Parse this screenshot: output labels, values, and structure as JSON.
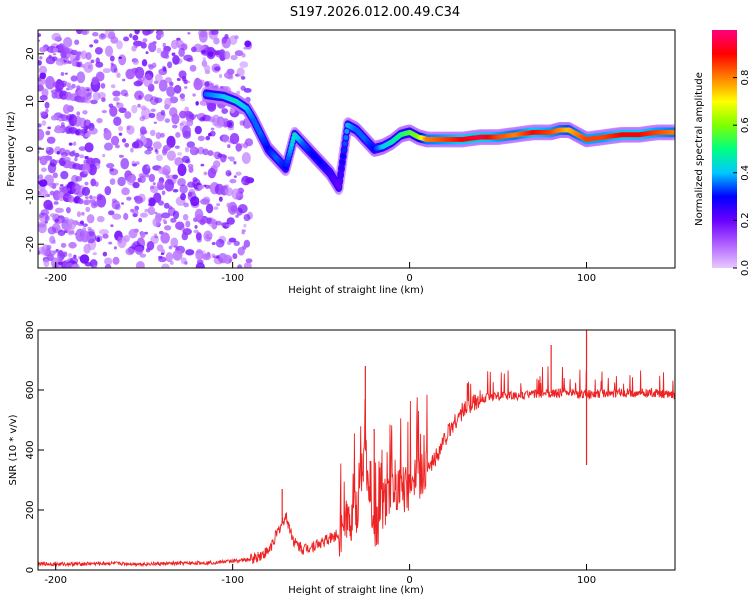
{
  "figure_title": "S197.2026.012.00.49.C34",
  "chart_data": [
    {
      "type": "heatmap",
      "title": "S197.2026.012.00.49.C34",
      "xlabel": "Height of straight line (km)",
      "ylabel": "Frequency (Hz)",
      "xlim": [
        -210,
        150
      ],
      "ylim": [
        -25,
        25
      ],
      "xticks": [
        -200,
        -100,
        0,
        100
      ],
      "yticks": [
        -20,
        -10,
        0,
        10,
        20
      ],
      "colorbar": {
        "label": "Normalized spectral amplitude",
        "range": [
          0.0,
          1.0
        ],
        "ticks": [
          "0.0",
          "0.2",
          "0.4",
          "0.6",
          "0.8"
        ],
        "colormap": [
          "#e8c8ff",
          "#b060ff",
          "#6a00ff",
          "#0000ff",
          "#00c8ff",
          "#00ff80",
          "#80ff00",
          "#ffff00",
          "#ff8000",
          "#ff0000",
          "#ff0080"
        ]
      },
      "noise_region": {
        "x": [
          -210,
          -90
        ],
        "y": [
          -25,
          25
        ],
        "amplitude": [
          0.05,
          0.2
        ]
      },
      "ridge": {
        "x": [
          -115,
          -105,
          -98,
          -92,
          -88,
          -84,
          -80,
          -75,
          -70,
          -65,
          -60,
          -55,
          -50,
          -45,
          -40,
          -35,
          -30,
          -25,
          -20,
          -15,
          -10,
          -5,
          0,
          5,
          10,
          20,
          30,
          40,
          50,
          60,
          70,
          80,
          85,
          90,
          95,
          100,
          110,
          120,
          130,
          140,
          150
        ],
        "y": [
          11.5,
          11,
          10,
          8.5,
          6,
          3,
          0,
          -2,
          -4,
          3,
          1,
          -1,
          -3,
          -5,
          -8,
          5,
          4,
          2,
          0,
          0.5,
          1.5,
          3,
          3.5,
          2.5,
          2,
          2,
          2,
          2.5,
          2.5,
          3,
          3.5,
          3.5,
          4,
          4,
          3,
          2,
          2.5,
          3,
          3,
          3.5,
          3.5
        ],
        "amplitude": [
          0.35,
          0.4,
          0.45,
          0.4,
          0.35,
          0.35,
          0.3,
          0.35,
          0.3,
          0.45,
          0.35,
          0.3,
          0.3,
          0.25,
          0.2,
          0.4,
          0.35,
          0.35,
          0.3,
          0.4,
          0.45,
          0.5,
          0.55,
          0.6,
          0.8,
          0.85,
          0.9,
          0.95,
          0.85,
          0.8,
          0.9,
          0.85,
          0.8,
          0.75,
          0.8,
          0.85,
          0.85,
          0.9,
          0.9,
          0.85,
          0.8
        ]
      }
    },
    {
      "type": "line",
      "xlabel": "Height of straight line (km)",
      "ylabel": "SNR (10 * v/v)",
      "xlim": [
        -210,
        150
      ],
      "ylim": [
        0,
        800
      ],
      "xticks": [
        -200,
        -100,
        0,
        100
      ],
      "yticks": [
        0,
        200,
        400,
        600,
        800
      ],
      "color": "#ee2222",
      "series": [
        {
          "name": "SNR",
          "x": [
            -210,
            -190,
            -170,
            -150,
            -130,
            -110,
            -100,
            -90,
            -80,
            -75,
            -70,
            -65,
            -60,
            -50,
            -40,
            -30,
            -25,
            -22,
            -20,
            -18,
            -15,
            -10,
            -5,
            0,
            5,
            10,
            15,
            20,
            25,
            30,
            40,
            50,
            60,
            70,
            80,
            90,
            100,
            110,
            120,
            130,
            140,
            150
          ],
          "y": [
            20,
            20,
            22,
            20,
            22,
            25,
            30,
            35,
            60,
            120,
            180,
            90,
            70,
            90,
            120,
            200,
            400,
            180,
            120,
            150,
            220,
            250,
            260,
            280,
            300,
            330,
            380,
            440,
            490,
            530,
            570,
            580,
            580,
            585,
            590,
            590,
            585,
            590,
            590,
            590,
            590,
            580
          ]
        }
      ],
      "spikes": [
        {
          "x": -72,
          "y": 270
        },
        {
          "x": -25,
          "y": 680
        },
        {
          "x": -20,
          "y": 470
        },
        {
          "x": 80,
          "y": 750
        },
        {
          "x": 100,
          "y": 350
        },
        {
          "x": 100,
          "y": 800
        }
      ]
    }
  ]
}
